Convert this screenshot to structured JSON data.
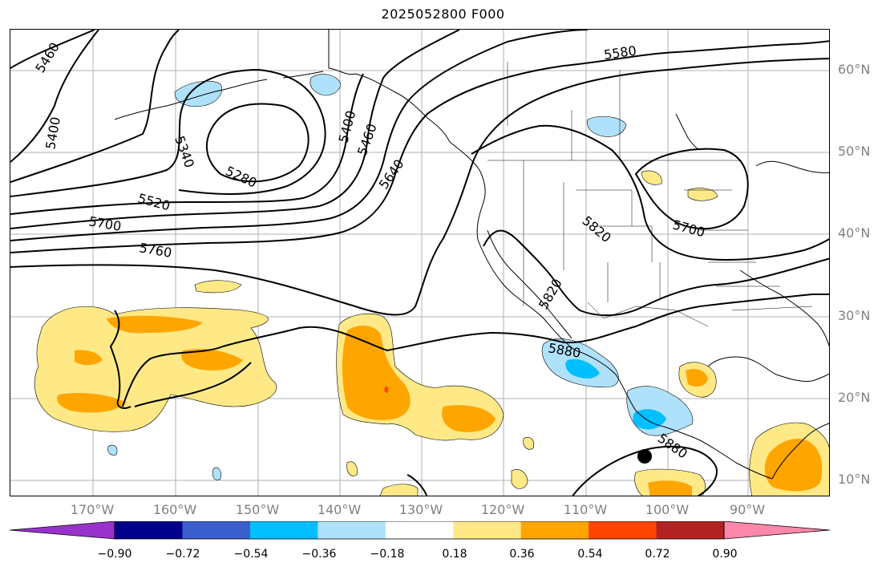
{
  "title": "2025052800 F000",
  "map": {
    "lat_labels": [
      "60°N",
      "50°N",
      "40°N",
      "30°N",
      "20°N",
      "10°N"
    ],
    "lon_labels": [
      "170°W",
      "160°W",
      "150°W",
      "140°W",
      "130°W",
      "120°W",
      "110°W",
      "100°W",
      "90°W"
    ],
    "contour_labels": [
      "5460",
      "5400",
      "5340",
      "5280",
      "5400",
      "5460",
      "5640",
      "5520",
      "5700",
      "5760",
      "5580",
      "5820",
      "5700",
      "5820",
      "5880",
      "5880"
    ],
    "contour_color": "#000000",
    "coastline_color": "#000000",
    "grid_color": "#b0b0b0"
  },
  "colorbar": {
    "ticks": [
      "−0.90",
      "−0.72",
      "−0.54",
      "−0.36",
      "−0.18",
      "0.18",
      "0.36",
      "0.54",
      "0.72",
      "0.90"
    ],
    "colors": [
      "#9932cc",
      "#00008b",
      "#3a5fcd",
      "#00bfff",
      "#afe1fa",
      "#ffffff",
      "#ffe986",
      "#ffa500",
      "#ff4500",
      "#b22222",
      "#ff88aa"
    ]
  }
}
